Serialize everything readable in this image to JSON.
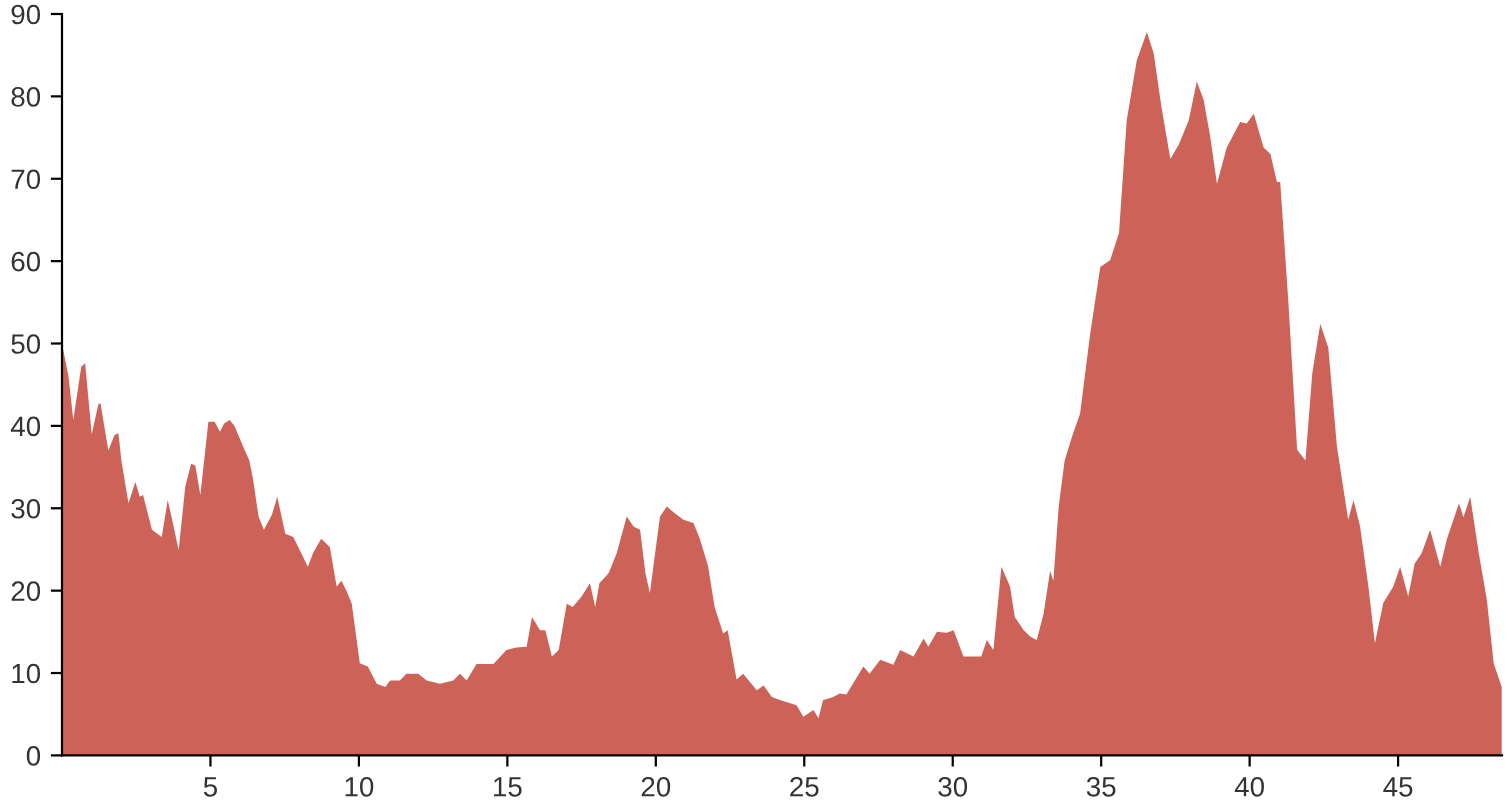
{
  "chart_data": {
    "type": "area",
    "color": "#cd6358",
    "x": [
      0,
      0.22,
      0.38,
      0.65,
      0.78,
      1.0,
      1.23,
      1.3,
      1.56,
      1.77,
      1.9,
      2.0,
      2.24,
      2.47,
      2.62,
      2.73,
      3.03,
      3.36,
      3.56,
      3.7,
      3.93,
      4.15,
      4.35,
      4.49,
      4.66,
      4.93,
      5.14,
      5.32,
      5.46,
      5.65,
      5.81,
      6.1,
      6.31,
      6.44,
      6.62,
      6.8,
      7.07,
      7.25,
      7.52,
      7.79,
      8.01,
      8.28,
      8.46,
      8.73,
      9.02,
      9.25,
      9.41,
      9.58,
      9.76,
      10.03,
      10.3,
      10.6,
      10.89,
      11.05,
      11.38,
      11.6,
      12.0,
      12.28,
      12.73,
      13.18,
      13.4,
      13.63,
      13.96,
      14.53,
      14.97,
      15.3,
      15.65,
      15.83,
      16.1,
      16.28,
      16.5,
      16.73,
      17.0,
      17.2,
      17.5,
      17.78,
      17.96,
      18.1,
      18.41,
      18.68,
      19.02,
      19.25,
      19.47,
      19.65,
      19.8,
      20.14,
      20.37,
      20.64,
      20.93,
      21.27,
      21.49,
      21.76,
      21.98,
      22.27,
      22.42,
      22.72,
      22.94,
      23.4,
      23.63,
      23.91,
      24.2,
      24.74,
      24.97,
      25.31,
      25.48,
      25.63,
      25.97,
      26.2,
      26.42,
      26.99,
      27.2,
      27.56,
      28.0,
      28.23,
      28.68,
      29.02,
      29.18,
      29.47,
      29.8,
      30.03,
      30.36,
      30.7,
      30.96,
      31.15,
      31.37,
      31.64,
      31.93,
      32.09,
      32.39,
      32.62,
      32.83,
      33.06,
      33.28,
      33.39,
      33.57,
      33.77,
      34.02,
      34.29,
      34.63,
      34.97,
      35.3,
      35.6,
      35.86,
      36.2,
      36.54,
      36.77,
      37.03,
      37.33,
      37.62,
      37.95,
      38.22,
      38.45,
      38.67,
      38.9,
      39.23,
      39.68,
      39.9,
      40.14,
      40.47,
      40.7,
      40.92,
      41.03,
      41.3,
      41.6,
      41.88,
      42.11,
      42.38,
      42.65,
      42.94,
      43.32,
      43.5,
      43.72,
      44.0,
      44.22,
      44.5,
      44.84,
      45.07,
      45.34,
      45.56,
      45.79,
      46.08,
      46.42,
      46.64,
      47.05,
      47.2,
      47.43,
      47.72,
      47.99,
      48.22,
      48.49
    ],
    "values": [
      50,
      46,
      40.7,
      47.2,
      47.6,
      39,
      42.7,
      42.7,
      37,
      38.9,
      39.1,
      35.8,
      30.6,
      33.2,
      31.4,
      31.6,
      27.4,
      26.5,
      31,
      28.8,
      24.9,
      32.6,
      35.4,
      35.2,
      31.6,
      40.5,
      40.5,
      39.3,
      40.3,
      40.7,
      40,
      37.5,
      35.8,
      33.4,
      29,
      27.4,
      29.2,
      31.4,
      26.9,
      26.5,
      24.9,
      22.9,
      24.6,
      26.3,
      25.3,
      20.5,
      21.2,
      20,
      18.4,
      11.2,
      10.8,
      8.7,
      8.3,
      9.1,
      9.1,
      9.9,
      9.9,
      9.1,
      8.7,
      9.1,
      9.9,
      9.1,
      11.1,
      11.1,
      12.8,
      13.1,
      13.2,
      16.8,
      15.2,
      15.2,
      12,
      12.8,
      18.4,
      18,
      19.3,
      20.9,
      18,
      20.9,
      22.1,
      24.5,
      29,
      27.8,
      27.4,
      22.1,
      19.7,
      29,
      30.2,
      29.4,
      28.6,
      28.2,
      26.2,
      23,
      18,
      14.8,
      15.2,
      9.2,
      9.9,
      7.9,
      8.5,
      7.1,
      6.7,
      6.1,
      4.7,
      5.5,
      4.5,
      6.7,
      7.1,
      7.5,
      7.4,
      10.8,
      9.9,
      11.6,
      11,
      12.8,
      12,
      14.2,
      13.2,
      15,
      14.9,
      15.2,
      12,
      12,
      12,
      14,
      12.8,
      22.9,
      20.5,
      16.8,
      15.2,
      14.4,
      14,
      17.2,
      22.4,
      21.2,
      30.2,
      35.8,
      38.7,
      41.5,
      51.2,
      59.3,
      60.1,
      63.4,
      77.1,
      84.4,
      87.8,
      85.2,
      78.7,
      72.4,
      74.2,
      77.1,
      81.8,
      79.6,
      75.2,
      69.4,
      73.8,
      76.9,
      76.7,
      77.9,
      73.8,
      73,
      69.6,
      69.6,
      55.3,
      37.1,
      35.8,
      46.4,
      52.4,
      49.5,
      37.5,
      28.6,
      31,
      27.8,
      20.5,
      13.6,
      18.5,
      20.5,
      22.9,
      19.3,
      23.3,
      24.5,
      27.4,
      22.9,
      26.2,
      30.6,
      28.9,
      31.4,
      24.5,
      18.9,
      11.2,
      8.3
    ],
    "xlim": [
      0,
      48.5
    ],
    "ylim": [
      0,
      90
    ],
    "xticks": [
      5,
      10,
      15,
      20,
      25,
      30,
      35,
      40,
      45
    ],
    "yticks": [
      0,
      10,
      20,
      30,
      40,
      50,
      60,
      70,
      80,
      90
    ],
    "grid": false,
    "legend": false
  }
}
